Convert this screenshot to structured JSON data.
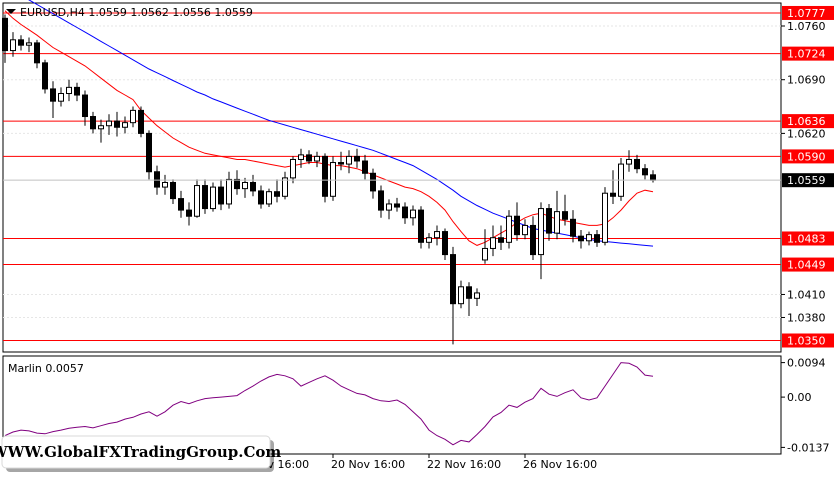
{
  "chart_data": [
    {
      "type": "candlestick",
      "title": "EURUSD,H4  1.0559 1.0562 1.0556 1.0559",
      "symbol": "EURUSD",
      "timeframe": "H4",
      "ohlc_readout": [
        1.0559,
        1.0562,
        1.0556,
        1.0559
      ],
      "current_price": 1.0559,
      "ylim": [
        1.0335,
        1.079
      ],
      "y_ticks": [
        1.076,
        1.069,
        1.062,
        1.041,
        1.038
      ],
      "y_tick_labels": [
        "1.0760",
        "1.0690",
        "1.0620",
        "1.0410",
        "1.0380"
      ],
      "horizontal_levels": [
        1.0777,
        1.0724,
        1.0636,
        1.059,
        1.0483,
        1.0449,
        1.035
      ],
      "horizontal_level_labels": [
        "1.0777",
        "1.0724",
        "1.0636",
        "1.0590",
        "1.0483",
        "1.0449",
        "1.0350"
      ],
      "level_color": "#ff0000",
      "bull_color": "#ffffff",
      "bear_color": "#000000",
      "candles": [
        [
          1.077,
          1.0775,
          1.0712,
          1.0728
        ],
        [
          1.0728,
          1.0752,
          1.072,
          1.0742
        ],
        [
          1.0742,
          1.0748,
          1.0728,
          1.0735
        ],
        [
          1.0735,
          1.0745,
          1.0726,
          1.0738
        ],
        [
          1.0738,
          1.0742,
          1.0705,
          1.0712
        ],
        [
          1.0712,
          1.0716,
          1.0672,
          1.0678
        ],
        [
          1.0678,
          1.0688,
          1.064,
          1.0662
        ],
        [
          1.0662,
          1.068,
          1.0655,
          1.0672
        ],
        [
          1.0672,
          1.069,
          1.0662,
          1.068
        ],
        [
          1.068,
          1.0686,
          1.0662,
          1.067
        ],
        [
          1.067,
          1.0676,
          1.063,
          1.0642
        ],
        [
          1.0642,
          1.0648,
          1.062,
          1.0626
        ],
        [
          1.0626,
          1.0638,
          1.0608,
          1.063
        ],
        [
          1.063,
          1.0645,
          1.0618,
          1.0636
        ],
        [
          1.0636,
          1.0648,
          1.0616,
          1.0628
        ],
        [
          1.0628,
          1.0642,
          1.062,
          1.0634
        ],
        [
          1.0634,
          1.0655,
          1.0628,
          1.065
        ],
        [
          1.065,
          1.0655,
          1.0615,
          1.062
        ],
        [
          1.062,
          1.0624,
          1.056,
          1.057
        ],
        [
          1.057,
          1.0578,
          1.054,
          1.055
        ],
        [
          1.055,
          1.0566,
          1.054,
          1.0556
        ],
        [
          1.0556,
          1.056,
          1.0528,
          1.0535
        ],
        [
          1.0535,
          1.0545,
          1.051,
          1.052
        ],
        [
          1.052,
          1.053,
          1.05,
          1.0512
        ],
        [
          1.0512,
          1.056,
          1.051,
          1.0552
        ],
        [
          1.0552,
          1.056,
          1.0515,
          1.0522
        ],
        [
          1.0522,
          1.0556,
          1.0518,
          1.055
        ],
        [
          1.055,
          1.056,
          1.052,
          1.0528
        ],
        [
          1.0528,
          1.057,
          1.0522,
          1.056
        ],
        [
          1.056,
          1.0572,
          1.054,
          1.0548
        ],
        [
          1.0548,
          1.0562,
          1.0536,
          1.0556
        ],
        [
          1.0556,
          1.0566,
          1.0538,
          1.0545
        ],
        [
          1.0545,
          1.0552,
          1.0522,
          1.0528
        ],
        [
          1.0528,
          1.0548,
          1.0524,
          1.0544
        ],
        [
          1.0544,
          1.056,
          1.053,
          1.0538
        ],
        [
          1.0538,
          1.057,
          1.0534,
          1.0562
        ],
        [
          1.0562,
          1.059,
          1.0555,
          1.0586
        ],
        [
          1.0586,
          1.06,
          1.0575,
          1.0592
        ],
        [
          1.0592,
          1.0598,
          1.058,
          1.0584
        ],
        [
          1.0584,
          1.0596,
          1.0576,
          1.059
        ],
        [
          1.059,
          1.0594,
          1.053,
          1.0538
        ],
        [
          1.0538,
          1.059,
          1.0532,
          1.0582
        ],
        [
          1.0582,
          1.0596,
          1.0572,
          1.058
        ],
        [
          1.058,
          1.0598,
          1.0568,
          1.059
        ],
        [
          1.059,
          1.06,
          1.0575,
          1.0584
        ],
        [
          1.0584,
          1.0592,
          1.056,
          1.0568
        ],
        [
          1.0568,
          1.0574,
          1.0535,
          1.0545
        ],
        [
          1.0545,
          1.0552,
          1.051,
          1.052
        ],
        [
          1.052,
          1.0534,
          1.0508,
          1.0528
        ],
        [
          1.0528,
          1.0536,
          1.0518,
          1.0524
        ],
        [
          1.0524,
          1.053,
          1.0502,
          1.051
        ],
        [
          1.051,
          1.0526,
          1.05,
          1.052
        ],
        [
          1.052,
          1.0525,
          1.047,
          1.0478
        ],
        [
          1.0478,
          1.049,
          1.047,
          1.0484
        ],
        [
          1.0484,
          1.05,
          1.0474,
          1.0492
        ],
        [
          1.0492,
          1.0496,
          1.0455,
          1.0462
        ],
        [
          1.0462,
          1.0472,
          1.0345,
          1.0398
        ],
        [
          1.0398,
          1.0428,
          1.0392,
          1.042
        ],
        [
          1.042,
          1.0426,
          1.0382,
          1.0405
        ],
        [
          1.0405,
          1.0418,
          1.0395,
          1.0412
        ],
        [
          1.0455,
          1.0495,
          1.045,
          1.047
        ],
        [
          1.047,
          1.05,
          1.046,
          1.0484
        ],
        [
          1.0484,
          1.05,
          1.0468,
          1.0478
        ],
        [
          1.0478,
          1.052,
          1.047,
          1.0512
        ],
        [
          1.0512,
          1.053,
          1.048,
          1.0488
        ],
        [
          1.0488,
          1.0508,
          1.0482,
          1.05
        ],
        [
          1.05,
          1.0512,
          1.0455,
          1.0462
        ],
        [
          1.0462,
          1.053,
          1.043,
          1.0522
        ],
        [
          1.0522,
          1.0528,
          1.048,
          1.049
        ],
        [
          1.049,
          1.0545,
          1.0482,
          1.0518
        ],
        [
          1.0518,
          1.054,
          1.05,
          1.0508
        ],
        [
          1.0508,
          1.052,
          1.0478,
          1.0486
        ],
        [
          1.0486,
          1.0494,
          1.047,
          1.048
        ],
        [
          1.048,
          1.0492,
          1.0474,
          1.0488
        ],
        [
          1.0488,
          1.0494,
          1.0472,
          1.0478
        ],
        [
          1.0478,
          1.055,
          1.0474,
          1.0542
        ],
        [
          1.0542,
          1.0572,
          1.0528,
          1.0538
        ],
        [
          1.0538,
          1.0588,
          1.0532,
          1.058
        ],
        [
          1.058,
          1.0598,
          1.057,
          1.0586
        ],
        [
          1.0586,
          1.0592,
          1.0568,
          1.0574
        ],
        [
          1.0574,
          1.058,
          1.056,
          1.0566
        ],
        [
          1.0566,
          1.0572,
          1.0556,
          1.0559
        ]
      ],
      "moving_averages": [
        {
          "color": "#ff0000",
          "values": [
            1.078,
            1.077,
            1.0762,
            1.0755,
            1.0748,
            1.074,
            1.0732,
            1.0726,
            1.072,
            1.0714,
            1.0708,
            1.07,
            1.0692,
            1.0684,
            1.0676,
            1.067,
            1.0664,
            1.065,
            1.064,
            1.063,
            1.0622,
            1.0614,
            1.0608,
            1.0602,
            1.0598,
            1.0594,
            1.0592,
            1.059,
            1.0588,
            1.0586,
            1.0586,
            1.0584,
            1.0582,
            1.058,
            1.0578,
            1.0576,
            1.0578,
            1.058,
            1.0582,
            1.0582,
            1.058,
            1.0578,
            1.0578,
            1.0576,
            1.0574,
            1.057,
            1.0566,
            1.0562,
            1.0558,
            1.0554,
            1.055,
            1.0548,
            1.0544,
            1.0538,
            1.053,
            1.052,
            1.0505,
            1.0492,
            1.048,
            1.0474,
            1.0478,
            1.0484,
            1.049,
            1.0496,
            1.0504,
            1.051,
            1.0514,
            1.0516,
            1.0512,
            1.0508,
            1.0506,
            1.0504,
            1.0502,
            1.05,
            1.05,
            1.0502,
            1.051,
            1.052,
            1.0532,
            1.0542,
            1.0546,
            1.0544
          ]
        },
        {
          "color": "#0000ff",
          "values": [
            1.0812,
            1.0806,
            1.08,
            1.0794,
            1.0788,
            1.0782,
            1.0776,
            1.077,
            1.0764,
            1.0758,
            1.0752,
            1.0746,
            1.074,
            1.0734,
            1.0728,
            1.0722,
            1.0716,
            1.071,
            1.0704,
            1.0699,
            1.0694,
            1.0689,
            1.0684,
            1.0679,
            1.0674,
            1.067,
            1.0665,
            1.0661,
            1.0657,
            1.0653,
            1.0649,
            1.0645,
            1.0641,
            1.0637,
            1.0634,
            1.0631,
            1.0628,
            1.0625,
            1.0622,
            1.0619,
            1.0616,
            1.0613,
            1.061,
            1.0607,
            1.0604,
            1.0601,
            1.0598,
            1.0594,
            1.059,
            1.0586,
            1.0582,
            1.0578,
            1.0572,
            1.0566,
            1.056,
            1.0553,
            1.0546,
            1.0538,
            1.0532,
            1.0526,
            1.0521,
            1.0516,
            1.0512,
            1.0508,
            1.0504,
            1.05,
            1.0496,
            1.0494,
            1.0492,
            1.049,
            1.0488,
            1.0486,
            1.0484,
            1.0482,
            1.048,
            1.0479,
            1.0478,
            1.0477,
            1.0476,
            1.0475,
            1.0474,
            1.0473
          ]
        }
      ]
    },
    {
      "type": "line",
      "title": "Marlin 0.0057",
      "indicator": "Marlin",
      "indicator_value": 0.0057,
      "ylim": [
        -0.0155,
        0.0112
      ],
      "y_ticks": [
        0.0094,
        0.0,
        -0.0137
      ],
      "y_tick_labels": [
        "0.0094",
        "0.00",
        "-0.0137"
      ],
      "line_color": "#800080",
      "values": [
        -0.0105,
        -0.0095,
        -0.009,
        -0.0092,
        -0.0098,
        -0.01,
        -0.0094,
        -0.009,
        -0.0085,
        -0.0082,
        -0.008,
        -0.0084,
        -0.0078,
        -0.0072,
        -0.0068,
        -0.006,
        -0.0055,
        -0.0046,
        -0.004,
        -0.0052,
        -0.004,
        -0.0022,
        -0.0012,
        -0.0018,
        -0.001,
        -0.0004,
        -0.0002,
        0.0,
        0.0002,
        0.0004,
        0.0018,
        0.003,
        0.0044,
        0.0055,
        0.0062,
        0.0058,
        0.005,
        0.003,
        0.004,
        0.005,
        0.0058,
        0.0046,
        0.003,
        0.002,
        0.001,
        0.0006,
        -0.0004,
        -0.001,
        -0.0012,
        -0.0008,
        -0.002,
        -0.004,
        -0.006,
        -0.009,
        -0.0105,
        -0.0115,
        -0.013,
        -0.0118,
        -0.0122,
        -0.0102,
        -0.008,
        -0.0054,
        -0.0042,
        -0.0022,
        -0.0028,
        -0.0014,
        -0.0004,
        0.0024,
        0.0008,
        0.0002,
        0.0012,
        0.002,
        -0.0002,
        -0.0008,
        -0.0002,
        0.003,
        0.0062,
        0.0094,
        0.0092,
        0.0082,
        0.006,
        0.0057
      ]
    }
  ],
  "time_axis": {
    "labels": [
      "18 Nov 16:00",
      "20 Nov 16:00",
      "22 Nov 16:00",
      "26 Nov 16:00"
    ],
    "label_candle_index": [
      29,
      41,
      53,
      65
    ]
  },
  "watermark": "WWW.GlobalFXTradingGroup.Com"
}
